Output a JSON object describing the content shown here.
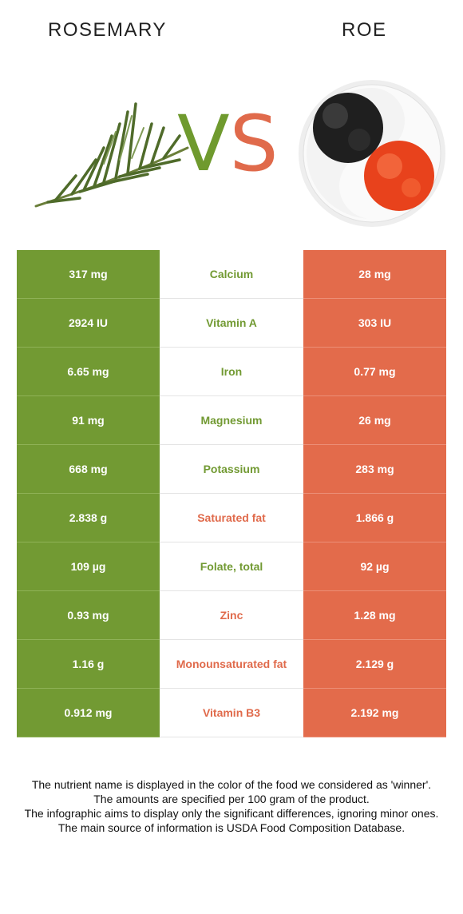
{
  "header": {
    "left_food": "ROSEMARY",
    "right_food": "ROE",
    "vs_v": "V",
    "vs_s": "S"
  },
  "colors": {
    "left": "#729a33",
    "right": "#e36b4b"
  },
  "rows": [
    {
      "left": "317 mg",
      "nutrient": "Calcium",
      "right": "28 mg",
      "winner": "left"
    },
    {
      "left": "2924 IU",
      "nutrient": "Vitamin A",
      "right": "303 IU",
      "winner": "left"
    },
    {
      "left": "6.65 mg",
      "nutrient": "Iron",
      "right": "0.77 mg",
      "winner": "left"
    },
    {
      "left": "91 mg",
      "nutrient": "Magnesium",
      "right": "26 mg",
      "winner": "left"
    },
    {
      "left": "668 mg",
      "nutrient": "Potassium",
      "right": "283 mg",
      "winner": "left"
    },
    {
      "left": "2.838 g",
      "nutrient": "Saturated fat",
      "right": "1.866 g",
      "winner": "right"
    },
    {
      "left": "109 µg",
      "nutrient": "Folate, total",
      "right": "92 µg",
      "winner": "left"
    },
    {
      "left": "0.93 mg",
      "nutrient": "Zinc",
      "right": "1.28 mg",
      "winner": "right"
    },
    {
      "left": "1.16 g",
      "nutrient": "Monounsaturated fat",
      "right": "2.129 g",
      "winner": "right"
    },
    {
      "left": "0.912 mg",
      "nutrient": "Vitamin B3",
      "right": "2.192 mg",
      "winner": "right"
    }
  ],
  "notes": [
    "The nutrient name is displayed in the color of the food we considered as 'winner'.",
    "The amounts are specified per 100 gram of the product.",
    "The infographic aims to display only the significant differences, ignoring minor ones.",
    "The main source of information is USDA Food Composition Database."
  ]
}
